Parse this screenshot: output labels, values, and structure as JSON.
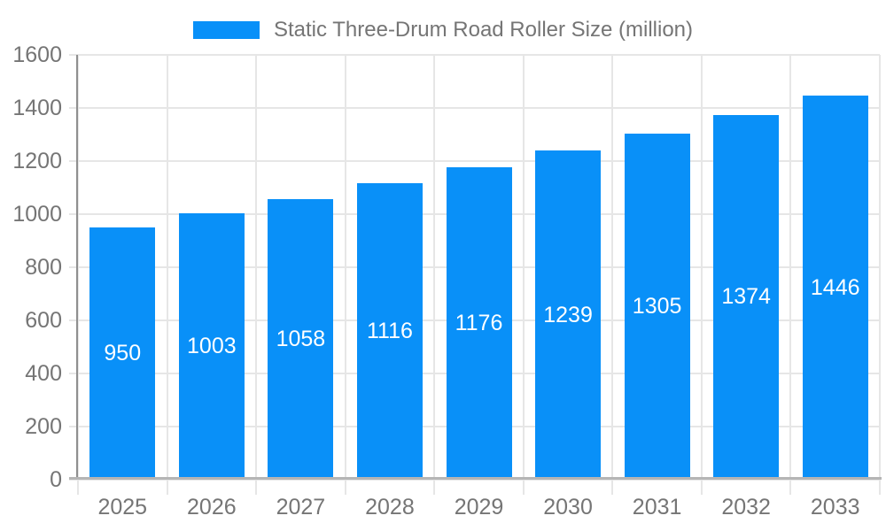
{
  "chart_data": {
    "type": "bar",
    "title": "Static Three-Drum Road Roller Size (million)",
    "categories": [
      "2025",
      "2026",
      "2027",
      "2028",
      "2029",
      "2030",
      "2031",
      "2032",
      "2033"
    ],
    "values": [
      950,
      1003,
      1058,
      1116,
      1176,
      1239,
      1305,
      1374,
      1446
    ],
    "yticks": [
      0,
      200,
      400,
      600,
      800,
      1000,
      1200,
      1400,
      1600
    ],
    "ylim": [
      0,
      1600
    ],
    "xlabel": "",
    "ylabel": "",
    "grid": true,
    "legend_position": "top",
    "bar_labels_shown": true,
    "colors": {
      "bar": "#0990f8",
      "bar_label": "#ffffff",
      "axis_text": "#757575",
      "grid": "#e6e6e6",
      "y_axis_line": "#8f8f8f",
      "x_axis_line": "#b5b5b5",
      "background": "#ffffff"
    }
  }
}
